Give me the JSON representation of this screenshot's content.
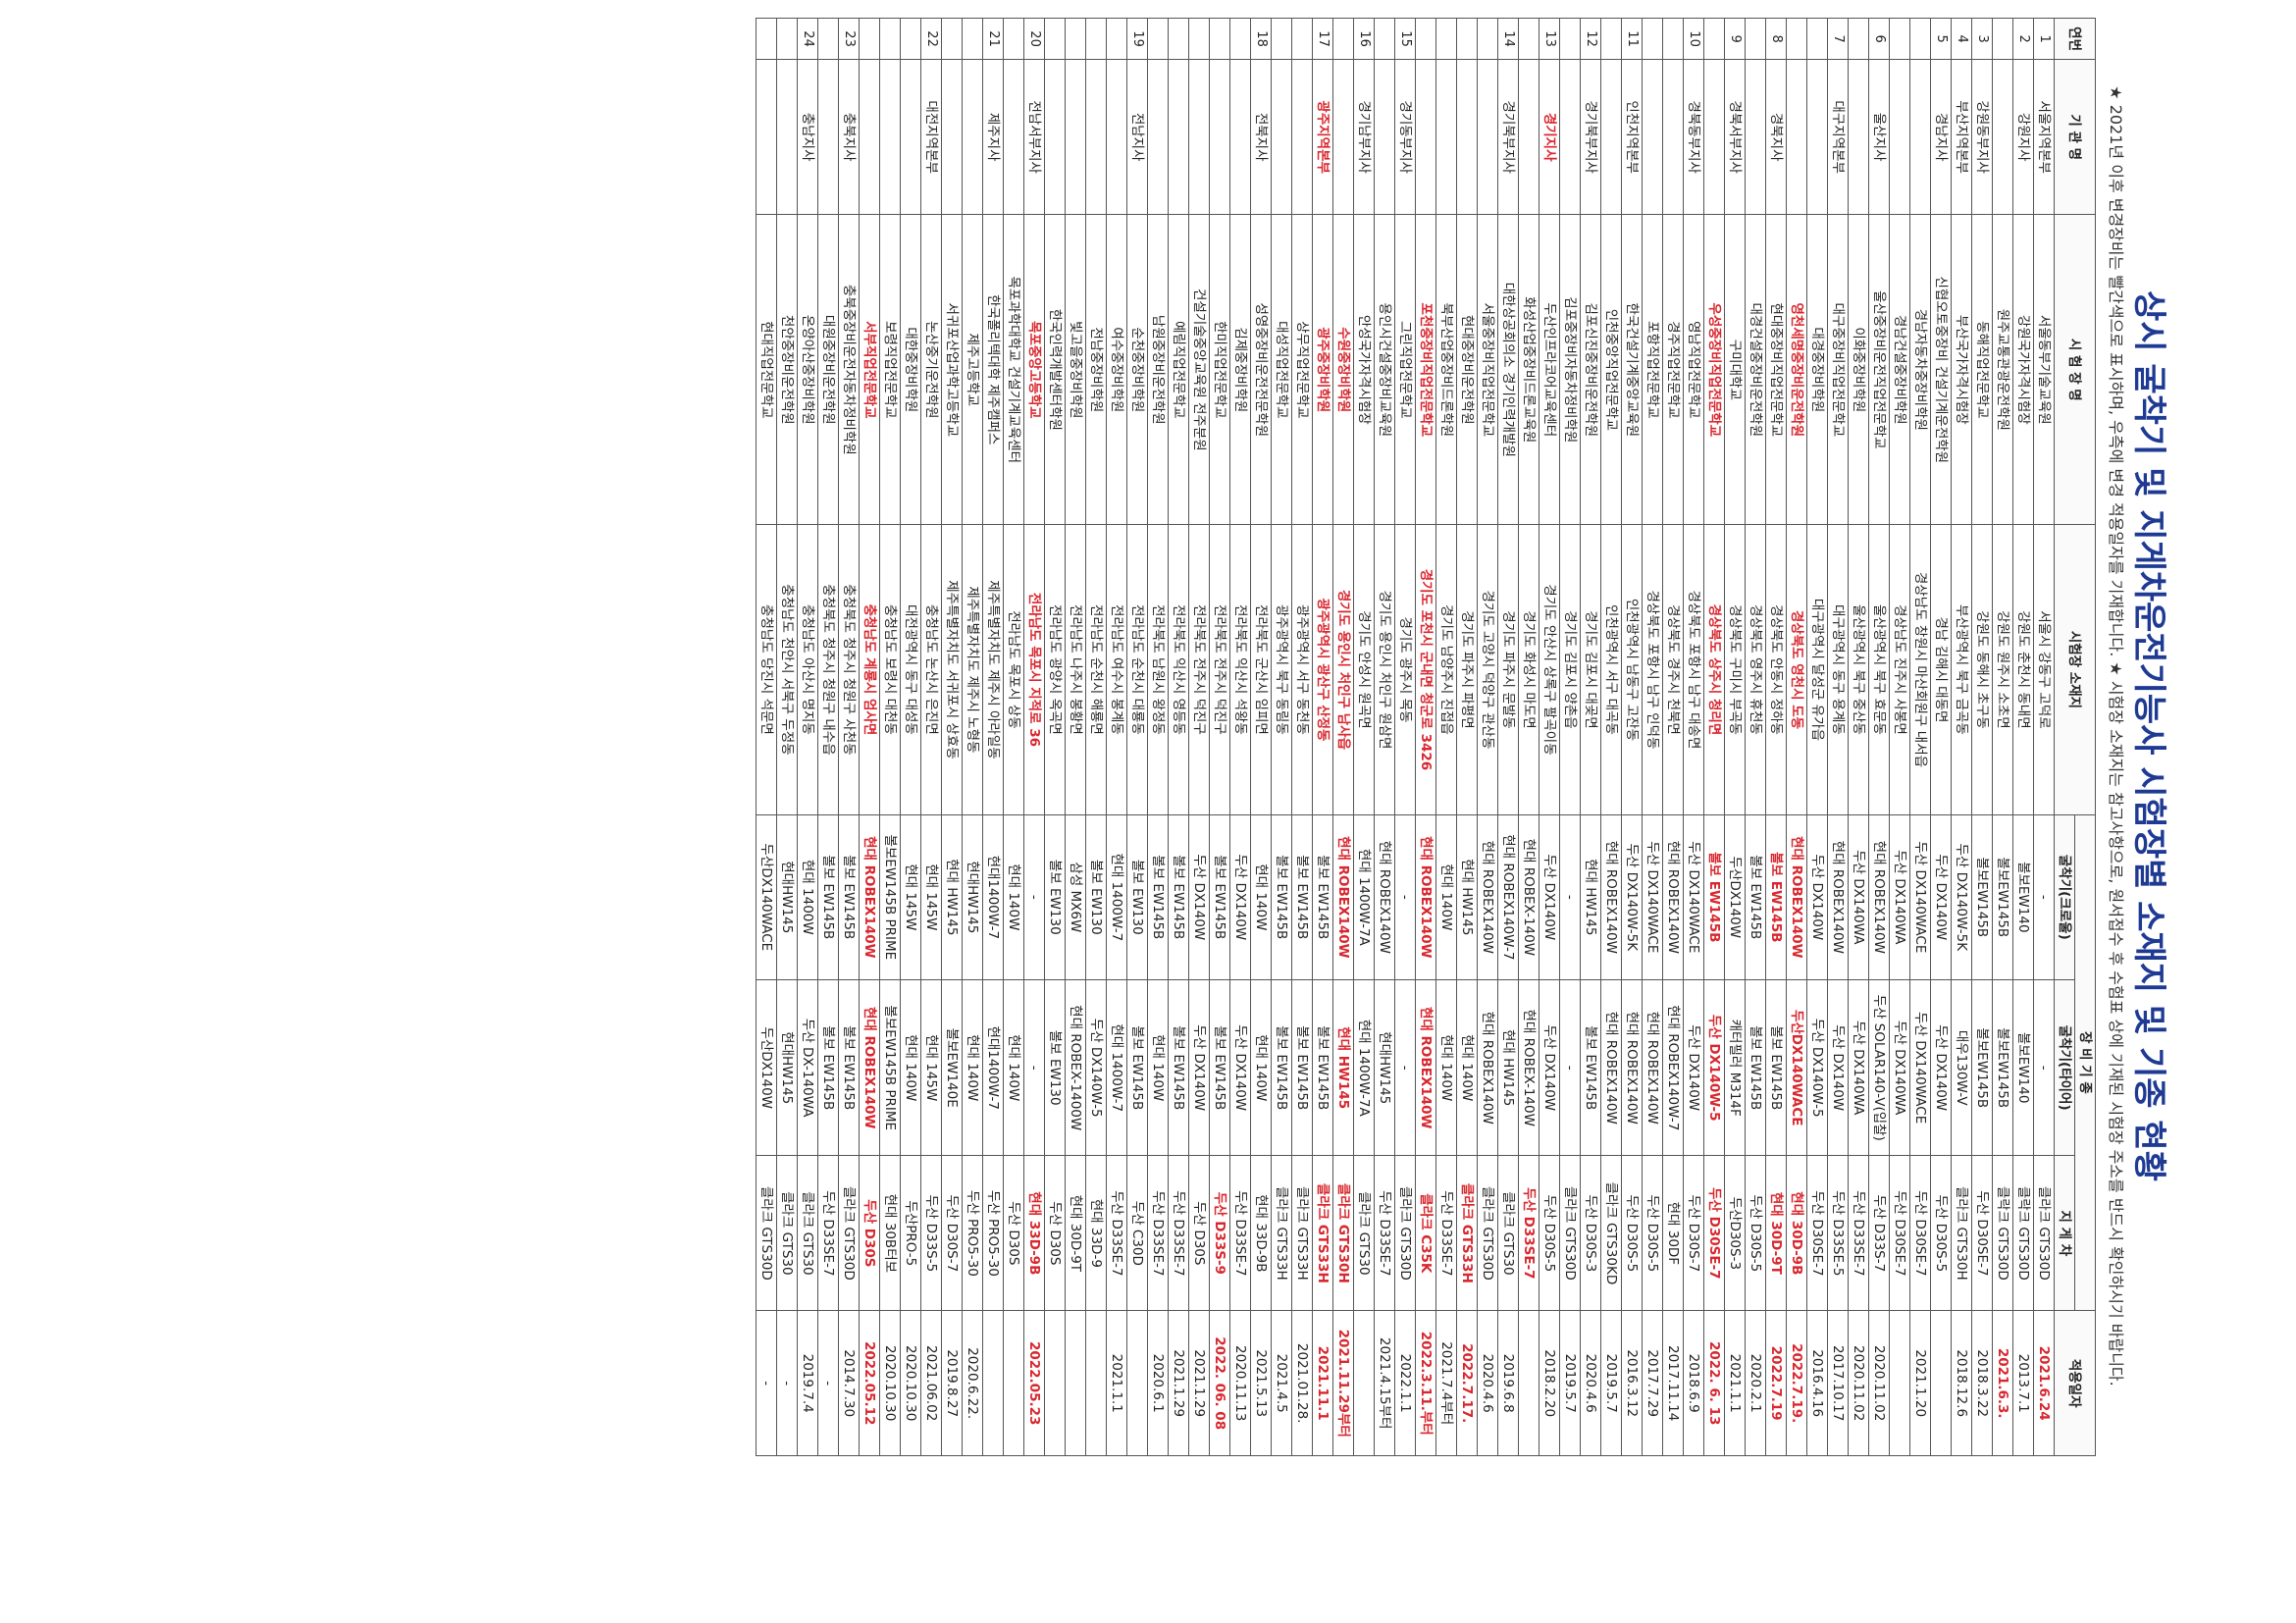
{
  "title": "상시 굴착기 및 지게차운전기능사 시험장별 소재지 및 기종 현황",
  "note": "★ 2021년 이후 변경장비는 빨간색으로 표시하며, 우측에 변경 적용일자를 기재합니다. ★ 시험장 소재지는 참고사항으로, 원서접수 후 수험표 상에 기재된 시험장 주소를 반드시 확인하시기 바랍니다.",
  "headers": {
    "no": "연번",
    "agency": "기 관 명",
    "site": "시 험 장 명",
    "address": "시험장 소재지",
    "equipment": "장 비 기 종",
    "excavator": "굴착기(크로울)",
    "excavator_wheel": "굴착기(타이어)",
    "forklift": "지 게 차",
    "date": "적용일자"
  },
  "rows": [
    {
      "no": "1",
      "agency": "서울지역본부",
      "site": "서울동부기술교육원",
      "address": "서울시 강동구 고덕로",
      "exc": "-",
      "wheel": "-",
      "fork": "클라크 GTS30D",
      "date": "2021.6.24",
      "red": [
        "date"
      ]
    },
    {
      "no": "2",
      "agency": "강원지사",
      "site": "강원국가자격시험장",
      "address": "강원도 춘천시 동내면",
      "exc": "볼보EW140",
      "wheel": "볼보EW140",
      "fork": "클락크 GTS30D",
      "date": "2013.7.1",
      "red": []
    },
    {
      "no": "",
      "agency": "",
      "site": "원주교통관광운전학원",
      "address": "강원도 원주시 소초면",
      "exc": "볼보EW145B",
      "wheel": "볼보EW145B",
      "fork": "클락크 GTS30D",
      "date": "2021.6.3.",
      "red": [
        "date"
      ]
    },
    {
      "no": "3",
      "agency": "강원동부지사",
      "site": "동해직업전문학교",
      "address": "강원도 동해시 초구동",
      "exc": "볼보EW145B",
      "wheel": "볼보EW145B",
      "fork": "두산 D30SE-7",
      "date": "2018.3.22",
      "red": []
    },
    {
      "no": "4",
      "agency": "부산지역본부",
      "site": "부산국가자격시험장",
      "address": "부산광역시 북구 금곡동",
      "exc": "두산 DX140W-5K",
      "wheel": "대우130W-V",
      "fork": "클라크 GTS30H",
      "date": "2018.12.6",
      "red": []
    },
    {
      "no": "5",
      "agency": "경남지사",
      "site": "신협오토중장비 건설기계운전학원",
      "address": "경남 김해시 대동면",
      "exc": "두산 DX140W",
      "wheel": "두산 DX140W",
      "fork": "두산 D30S-5",
      "date": "",
      "red": []
    },
    {
      "no": "",
      "agency": "",
      "site": "경남자동차중장비학원",
      "address": "경상남도 창원시 마산회원구 내서읍",
      "exc": "두산 DX140WACE",
      "wheel": "두산 DX140WACE",
      "fork": "두산 D30SE-7",
      "date": "2021.1.20",
      "red": []
    },
    {
      "no": "",
      "agency": "",
      "site": "경남건설중장비학원",
      "address": "경상남도 진주시 사봉면",
      "exc": "두산 DX140WA",
      "wheel": "두산 DX140WA",
      "fork": "두산 D30SE-7",
      "date": "",
      "red": []
    },
    {
      "no": "6",
      "agency": "울산지사",
      "site": "울산중장비운전직업전문학교",
      "address": "울산광역시 북구 효문동",
      "exc": "현대 ROBEX140W",
      "wheel": "두산 SOLAR140-V(입찰)",
      "fork": "두산 D33S-7",
      "date": "2020.11.02",
      "red": []
    },
    {
      "no": "",
      "agency": "",
      "site": "이화중장비학원",
      "address": "울산광역시 북구 중산동",
      "exc": "두산 DX140WA",
      "wheel": "두산 DX140WA",
      "fork": "두산 D33SE-7",
      "date": "2020.11.02",
      "red": []
    },
    {
      "no": "7",
      "agency": "대구지역본부",
      "site": "대구중장비직업전문학교",
      "address": "대구광역시 동구 용계동",
      "exc": "현대 ROBEX140W",
      "wheel": "두산 DX140W",
      "fork": "두산 D33SE-5",
      "date": "2017.10.17",
      "red": []
    },
    {
      "no": "",
      "agency": "",
      "site": "대경중장비학원",
      "address": "대구광역시 달성군 유가읍",
      "exc": "두산 DX140W",
      "wheel": "두산 DX140W-5",
      "fork": "두산 D30SE-7",
      "date": "2016.4.16",
      "red": []
    },
    {
      "no": "",
      "agency": "",
      "site": "영천세명중장비운전학원",
      "address": "경상북도 영천시 도동",
      "exc": "현대 ROBEX140W",
      "wheel": "두산DX140WACE",
      "fork": "현대 30D-9B",
      "date": "2022.7.19.",
      "red": [
        "site",
        "address",
        "exc",
        "wheel",
        "fork",
        "date"
      ]
    },
    {
      "no": "8",
      "agency": "경북지사",
      "site": "현대중장비직업전문학교",
      "address": "경상북도 안동시 정하동",
      "exc": "볼보 EW145B",
      "wheel": "볼보 EW145B",
      "fork": "현대 30D-9T",
      "date": "2022.7.19",
      "red": [
        "exc",
        "fork",
        "date"
      ]
    },
    {
      "no": "",
      "agency": "",
      "site": "대경건설중장비운전학원",
      "address": "경상북도 영주시 휴천동",
      "exc": "볼보 EW145B",
      "wheel": "볼보 EW145B",
      "fork": "두산 D30S-5",
      "date": "2020.2.1",
      "red": []
    },
    {
      "no": "9",
      "agency": "경북서부지사",
      "site": "구미대학교",
      "address": "경상북도 구미시 부곡동",
      "exc": "두산DX140W",
      "wheel": "캐터필러 M314F",
      "fork": "두산D30S-3",
      "date": "2021.1.1",
      "red": []
    },
    {
      "no": "",
      "agency": "",
      "site": "우성중장비직업전문학교",
      "address": "경상북도 상주시 청리면",
      "exc": "볼보 EW145B",
      "wheel": "두산 DX140W-5",
      "fork": "두산 D30SE-7",
      "date": "2022. 6. 13",
      "red": [
        "agency",
        "site",
        "address",
        "exc",
        "wheel",
        "fork",
        "date"
      ]
    },
    {
      "no": "10",
      "agency": "경북동부지사",
      "site": "영남직업전문학교",
      "address": "경상북도 포항시 남구 대송면",
      "exc": "두산 DX140WACE",
      "wheel": "두산 DX140W",
      "fork": "두산 D30S-7",
      "date": "2018.6.9",
      "red": []
    },
    {
      "no": "",
      "agency": "",
      "site": "경주직업전문학교",
      "address": "경상북도 경주시 천북면",
      "exc": "현대 ROBEX140W",
      "wheel": "현대 ROBEX140W-7",
      "fork": "현대 30DF",
      "date": "2017.11.14",
      "red": []
    },
    {
      "no": "",
      "agency": "",
      "site": "포항직업전문학교",
      "address": "경상북도 포항시 남구 인덕동",
      "exc": "두산 DX140WACE",
      "wheel": "현대 ROBEX140W",
      "fork": "두산 D30S-5",
      "date": "2017.7.29",
      "red": []
    },
    {
      "no": "11",
      "agency": "인천지역본부",
      "site": "한국건설기계중앙교육원",
      "address": "인천광역시 남동구 고잔동",
      "exc": "두산 DX140W-5K",
      "wheel": "현대 ROBEX140W",
      "fork": "두산 D30S-5",
      "date": "2016.3.12",
      "red": []
    },
    {
      "no": "",
      "agency": "",
      "site": "인천중앙직업전문학교",
      "address": "인천광역시 서구 대곡동",
      "exc": "현대 ROBEX140W",
      "wheel": "현대 ROBEX140W",
      "fork": "클라크 GTS30KD",
      "date": "2019.5.7",
      "red": []
    },
    {
      "no": "12",
      "agency": "경기북부지사",
      "site": "김포신진중장비운전학원",
      "address": "경기도 김포시 대곶면",
      "exc": "현대 HW145",
      "wheel": "볼보 EW145B",
      "fork": "두산 D30S-3",
      "date": "2020.4.6",
      "red": []
    },
    {
      "no": "",
      "agency": "",
      "site": "김포중장비자동차정비학원",
      "address": "경기도 김포시 양촌읍",
      "exc": "-",
      "wheel": "-",
      "fork": "클라크 GTS30D",
      "date": "2019.5.7",
      "red": []
    },
    {
      "no": "13",
      "agency": "경기지사",
      "site": "두산인프라코어교육센터",
      "address": "경기도 안산시 상록구 팔곡이동",
      "exc": "두산 DX140W",
      "wheel": "두산 DX140W",
      "fork": "두산 D30S-5",
      "date": "2018.2.20",
      "red": [
        "agency"
      ]
    },
    {
      "no": "",
      "agency": "",
      "site": "화성산업중장비드론교육원",
      "address": "경기도 화성시 마도면",
      "exc": "현대 ROBEX-140W",
      "wheel": "현대 ROBEX-140W",
      "fork": "두산 D33SE-7",
      "date": "",
      "red": [
        "fork"
      ]
    },
    {
      "no": "14",
      "agency": "경기북부지사",
      "site": "대한상공회의소 경기인력개발원",
      "address": "경기도 파주시 문발동",
      "exc": "현대 ROBEX140W-7",
      "wheel": "현대 HW145",
      "fork": "클라크 GTS30",
      "date": "2019.6.8",
      "red": []
    },
    {
      "no": "",
      "agency": "",
      "site": "서울중장비직업전문학교",
      "address": "경기도 고양시 덕양구 관산동",
      "exc": "현대 ROBEX140W",
      "wheel": "현대 ROBEX140W",
      "fork": "클라크 GTS30D",
      "date": "2020.4.6",
      "red": []
    },
    {
      "no": "",
      "agency": "",
      "site": "현대중장비운전학원",
      "address": "경기도 파주시 파평면",
      "exc": "현대 HW145",
      "wheel": "현대 140W",
      "fork": "클라크 GTS33H",
      "date": "2022.7.17.",
      "red": [
        "fork",
        "date"
      ]
    },
    {
      "no": "",
      "agency": "",
      "site": "북부산업중장비드론학원",
      "address": "경기도 남양주시 진접읍",
      "exc": "현대 140W",
      "wheel": "현대 140W",
      "fork": "두산 D33SE-7",
      "date": "2021.7.4부터",
      "red": []
    },
    {
      "no": "",
      "agency": "",
      "site": "포천중장비직업전문학교",
      "address": "경기도 포천시 군내면 청군로 3426",
      "exc": "현대 ROBEX140W",
      "wheel": "현대 ROBEX140W",
      "fork": "클라크 C35K",
      "date": "2022.3.11.부터",
      "red": [
        "site",
        "address",
        "exc",
        "wheel",
        "fork",
        "date"
      ]
    },
    {
      "no": "15",
      "agency": "경기동부지사",
      "site": "그린직업전문학교",
      "address": "경기도 광주시 목동",
      "exc": "-",
      "wheel": "-",
      "fork": "클라크 GTS30D",
      "date": "2022.1.1",
      "red": []
    },
    {
      "no": "",
      "agency": "",
      "site": "용인시건설중장비교육원",
      "address": "경기도 용인시 처인구 원삼면",
      "exc": "현대 ROBEX140W",
      "wheel": "현대HW145",
      "fork": "두산 D33SE-7",
      "date": "2021.4.15부터",
      "red": []
    },
    {
      "no": "16",
      "agency": "경기남부지사",
      "site": "안성국가자격시험장",
      "address": "경기도 안성시 원곡면",
      "exc": "현대 1400W-7A",
      "wheel": "현대 1400W-7A",
      "fork": "클라크 GTS30",
      "date": "",
      "red": []
    },
    {
      "no": "",
      "agency": "",
      "site": "수원중장비학원",
      "address": "경기도 용인시 처인구 남사읍",
      "exc": "현대 ROBEX140W",
      "wheel": "현대 HW145",
      "fork": "클라크 GTS30H",
      "date": "2021.11.29부터",
      "red": [
        "site",
        "address",
        "exc",
        "wheel",
        "fork",
        "date"
      ]
    },
    {
      "no": "17",
      "agency": "광주지역본부",
      "site": "광주중장비학원",
      "address": "광주광역시 광산구 산정동",
      "exc": "볼보 EW145B",
      "wheel": "볼보 EW145B",
      "fork": "클라크 GTS33H",
      "date": "2021.11.1",
      "red": [
        "agency",
        "site",
        "address",
        "fork",
        "date"
      ]
    },
    {
      "no": "",
      "agency": "",
      "site": "상무직업전문학교",
      "address": "광주광역시 서구 동천동",
      "exc": "볼보 EW145B",
      "wheel": "볼보 EW145B",
      "fork": "클라크 GTS33H",
      "date": "2021.01.28.",
      "red": []
    },
    {
      "no": "",
      "agency": "",
      "site": "대성직업전문학교",
      "address": "광주광역시 북구 동림동",
      "exc": "볼보 EW145B",
      "wheel": "볼보 EW145B",
      "fork": "클라크 GTS33H",
      "date": "2021.4.5",
      "red": []
    },
    {
      "no": "18",
      "agency": "전북지사",
      "site": "성영중장비운전전문학원",
      "address": "전라북도 군산시 임피면",
      "exc": "현대 140W",
      "wheel": "현대 140W",
      "fork": "현대 33D-9B",
      "date": "2021.5.13",
      "red": []
    },
    {
      "no": "",
      "agency": "",
      "site": "김제중장비학원",
      "address": "전라북도 익산시 석왕동",
      "exc": "두산 DX140W",
      "wheel": "두산 DX140W",
      "fork": "두산 D33SE-7",
      "date": "2020.11.13",
      "red": []
    },
    {
      "no": "",
      "agency": "",
      "site": "한미직업전문학교",
      "address": "전라북도 전주시 덕진구",
      "exc": "볼보 EW145B",
      "wheel": "볼보 EW145B",
      "fork": "두산 D33S-9",
      "date": "2022. 06. 08",
      "red": [
        "fork",
        "date"
      ]
    },
    {
      "no": "",
      "agency": "",
      "site": "건설기술중앙교육원 전주분원",
      "address": "전라북도 전주시 덕진구",
      "exc": "두산 DX140W",
      "wheel": "두산 DX140W",
      "fork": "두산 D30S",
      "date": "2021.1.29",
      "red": []
    },
    {
      "no": "",
      "agency": "",
      "site": "예림직업전문학교",
      "address": "전라북도 익산시 영등동",
      "exc": "볼보 EW145B",
      "wheel": "볼보 EW145B",
      "fork": "두산 D33SE-7",
      "date": "2021.1.29",
      "red": []
    },
    {
      "no": "",
      "agency": "",
      "site": "남원중장비운전학원",
      "address": "전라북도 남원시 왕정동",
      "exc": "볼보 EW145B",
      "wheel": "현대 140W",
      "fork": "두산 D33SE-7",
      "date": "2020.6.1",
      "red": []
    },
    {
      "no": "19",
      "agency": "전남지사",
      "site": "순천중장비학원",
      "address": "전라남도 순천시 대룡동",
      "exc": "볼보 EW130",
      "wheel": "볼보 EW145B",
      "fork": "두산 C30D",
      "date": "",
      "red": []
    },
    {
      "no": "",
      "agency": "",
      "site": "여수중장비학원",
      "address": "전라남도 여수시 봉계동",
      "exc": "현대 1400W-7",
      "wheel": "현대 1400W-7",
      "fork": "두산 D33SE-7",
      "date": "2021.1.1",
      "red": []
    },
    {
      "no": "",
      "agency": "",
      "site": "전남중장비학원",
      "address": "전라남도 순천시 해룡면",
      "exc": "볼보 EW130",
      "wheel": "두산 DX140W-5",
      "fork": "현대 33D-9",
      "date": "",
      "red": []
    },
    {
      "no": "",
      "agency": "",
      "site": "빛고을중장비학원",
      "address": "전라남도 나주시 봉황면",
      "exc": "삼성 MX6W",
      "wheel": "현대 ROBEX-1400W",
      "fork": "현대 30D-9T",
      "date": "",
      "red": []
    },
    {
      "no": "",
      "agency": "",
      "site": "한국인력개발센터학원",
      "address": "전라남도 광양시 옥곡면",
      "exc": "볼보 EW130",
      "wheel": "볼보 EW130",
      "fork": "두산 D30S",
      "date": "",
      "red": []
    },
    {
      "no": "20",
      "agency": "전남서부지사",
      "site": "목포중앙고등학교",
      "address": "전라남도 목포시 지적로 36",
      "exc": "-",
      "wheel": "-",
      "fork": "현대 33D-9B",
      "date": "2022.05.23",
      "red": [
        "site",
        "address",
        "fork",
        "date"
      ]
    },
    {
      "no": "",
      "agency": "",
      "site": "목포과학대학교 건설기계교육센터",
      "address": "전라남도 목포시 상동",
      "exc": "현대 140W",
      "wheel": "현대 140W",
      "fork": "두산 D30S",
      "date": "",
      "red": []
    },
    {
      "no": "21",
      "agency": "제주지사",
      "site": "한국폴리텍대학 제주캠퍼스",
      "address": "제주특별자치도 제주시 아라일동",
      "exc": "현대1400W-7",
      "wheel": "현대1400W-7",
      "fork": "두산 PRO5-30",
      "date": "",
      "red": []
    },
    {
      "no": "",
      "agency": "",
      "site": "제주고등학교",
      "address": "제주특별자치도 제주시 노형동",
      "exc": "현대HW145",
      "wheel": "현대 140W",
      "fork": "두산 PRO5-30",
      "date": "2020.6.22.",
      "red": []
    },
    {
      "no": "",
      "agency": "",
      "site": "서귀포산업과학고등학교",
      "address": "제주특별자치도 서귀포시 상효동",
      "exc": "현대 HW145",
      "wheel": "볼보EW140E",
      "fork": "두산 D30S-7",
      "date": "2019.8.27",
      "red": []
    },
    {
      "no": "22",
      "agency": "대전지역본부",
      "site": "논산중기운전학원",
      "address": "충청남도 논산시 은진면",
      "exc": "현대 145W",
      "wheel": "현대 145W",
      "fork": "두산 D33S-5",
      "date": "2021.06.02",
      "red": []
    },
    {
      "no": "",
      "agency": "",
      "site": "대한중장비학원",
      "address": "대전광역시 동구 대성동",
      "exc": "현대 145W",
      "wheel": "현대 140W",
      "fork": "두산PRO-5",
      "date": "2020.10.30",
      "red": []
    },
    {
      "no": "",
      "agency": "",
      "site": "보령직업전문학교",
      "address": "충청남도 보령시 대천동",
      "exc": "볼보EW145B PRIME",
      "wheel": "볼보EW145B PRIME",
      "fork": "현대 30B터보",
      "date": "2020.10.30",
      "red": []
    },
    {
      "no": "",
      "agency": "",
      "site": "서부직업전문학교",
      "address": "충청남도 계룡시 엄사면",
      "exc": "현대 ROBEX140W",
      "wheel": "현대 ROBEX140W",
      "fork": "두산 D30S",
      "date": "2022.05.12",
      "red": [
        "agency",
        "site",
        "address",
        "exc",
        "wheel",
        "fork",
        "date"
      ]
    },
    {
      "no": "23",
      "agency": "충북지사",
      "site": "충북중장비운전자동차정비학원",
      "address": "충청북도 청주시 청원구 사천동",
      "exc": "볼보 EW145B",
      "wheel": "볼보 EW145B",
      "fork": "클라크 GTS30D",
      "date": "2014.7.30",
      "red": []
    },
    {
      "no": "",
      "agency": "",
      "site": "대원중장비운전학원",
      "address": "충청북도 청주시 청원구 내수읍",
      "exc": "볼보 EW145B",
      "wheel": "볼보 EW145B",
      "fork": "두산 D33SE-7",
      "date": "-",
      "red": []
    },
    {
      "no": "24",
      "agency": "충남지사",
      "site": "온양아산중장비학원",
      "address": "충청남도 아산시 명지동",
      "exc": "현대 1400W",
      "wheel": "두산 DX-140WA",
      "fork": "클라크 GTS30",
      "date": "2019.7.4",
      "red": []
    },
    {
      "no": "",
      "agency": "",
      "site": "천안중장비운전학원",
      "address": "충청남도 천안시 서북구 두정동",
      "exc": "현대HW145",
      "wheel": "현대HW145",
      "fork": "클라크 GTS30",
      "date": "-",
      "red": []
    },
    {
      "no": "",
      "agency": "",
      "site": "현대직업전문학교",
      "address": "충청남도 당진시 석문면",
      "exc": "두산DX140WACE",
      "wheel": "두산DX140W",
      "fork": "클라크 GTS30D",
      "date": "-",
      "red": []
    }
  ]
}
